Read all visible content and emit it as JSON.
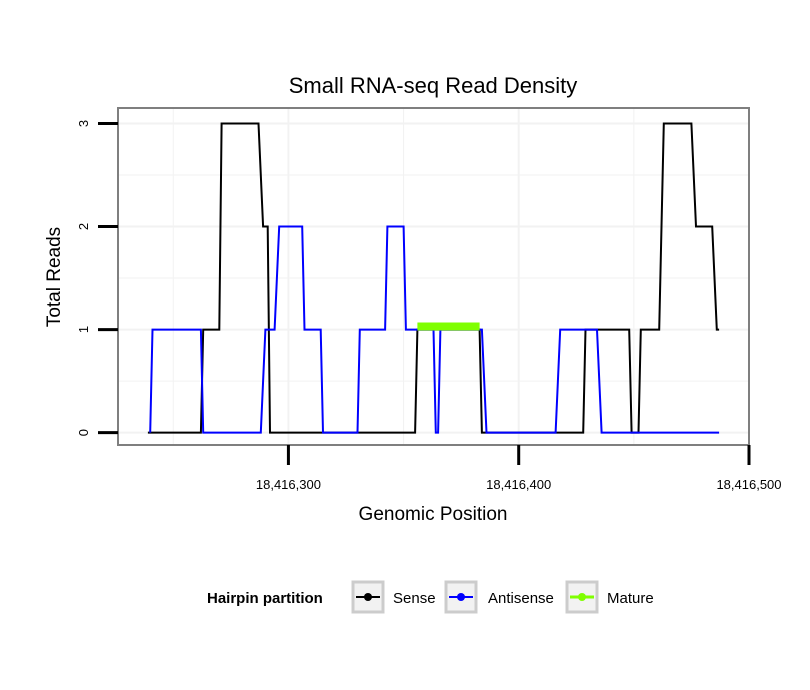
{
  "chart_data": {
    "type": "line",
    "title": "Small RNA-seq Read Density",
    "xlabel": "Genomic Position",
    "ylabel": "Total Reads",
    "xlim": [
      18416226,
      18416500
    ],
    "ylim": [
      -0.12,
      3.15
    ],
    "x_ticks": [
      18416300,
      18416400,
      18416500
    ],
    "x_tick_labels": [
      "18,416,300",
      "18,416,400",
      "18,416,500"
    ],
    "y_ticks": [
      0,
      1,
      2,
      3
    ],
    "y_tick_labels": [
      "0",
      "1",
      "2",
      "3"
    ],
    "grid": true,
    "legend_position": "bottom",
    "legend": {
      "title": "Hairpin partition",
      "entries": [
        "Sense",
        "Antisense",
        "Mature"
      ]
    },
    "colors": {
      "Sense": "#000000",
      "Antisense": "#0000ff",
      "Mature": "#7fff00",
      "panel_border": "#7f7f7f",
      "grid": "#f2f2f2"
    },
    "series": [
      {
        "name": "Sense",
        "x": [
          18416239,
          18416262,
          18416263,
          18416270,
          18416271,
          18416275,
          18416287,
          18416289,
          18416291,
          18416292,
          18416293,
          18416355,
          18416356,
          18416383,
          18416384,
          18416428,
          18416429,
          18416430,
          18416448,
          18416449,
          18416452,
          18416453,
          18416459,
          18416461,
          18416463,
          18416475,
          18416477,
          18416484,
          18416486,
          18416487
        ],
        "y": [
          0,
          0,
          1,
          1,
          3,
          3,
          3,
          2,
          2,
          0,
          0,
          0,
          1,
          1,
          0,
          0,
          1,
          1,
          1,
          0,
          0,
          1,
          1,
          1,
          3,
          3,
          2,
          2,
          1,
          1
        ]
      },
      {
        "name": "Antisense",
        "x": [
          18416240,
          18416241,
          18416262,
          18416263,
          18416288,
          18416290,
          18416294,
          18416296,
          18416306,
          18416307,
          18416314,
          18416315,
          18416330,
          18416331,
          18416342,
          18416343,
          18416350,
          18416351,
          18416363,
          18416364,
          18416365,
          18416366,
          18416384,
          18416386,
          18416416,
          18416418,
          18416434,
          18416436,
          18416487
        ],
        "y": [
          0,
          1,
          1,
          0,
          0,
          1,
          1,
          2,
          2,
          1,
          1,
          0,
          0,
          1,
          1,
          2,
          2,
          1,
          1,
          0,
          0,
          1,
          1,
          0,
          0,
          1,
          1,
          0,
          0
        ]
      },
      {
        "name": "Mature",
        "x": [
          18416356,
          18416383
        ],
        "y": [
          1.03,
          1.03
        ]
      }
    ]
  }
}
